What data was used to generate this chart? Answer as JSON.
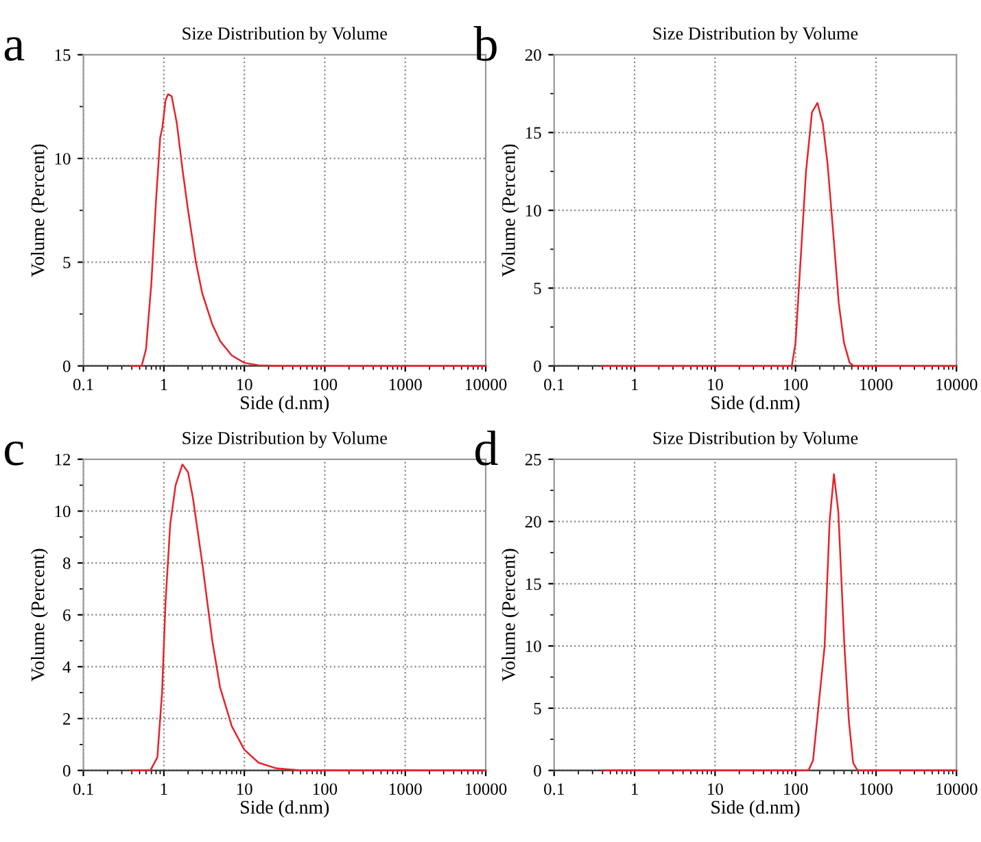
{
  "chart_data": [
    {
      "type": "line",
      "title": "Size Distribution by Volume",
      "xlabel": "Side (d.nm)",
      "ylabel": "Volume (Percent)",
      "annotations": [
        "a"
      ],
      "log": "x",
      "grid": true,
      "xlim": [
        0.1,
        10000
      ],
      "xticks": [
        0.1,
        1,
        10,
        100,
        1000,
        10000
      ],
      "ylim": [
        0,
        15
      ],
      "yticks": [
        0,
        5,
        10,
        15
      ],
      "series": [
        {
          "color": "#e5242b",
          "x": [
            0.4,
            0.53,
            0.6,
            0.7,
            0.8,
            0.9,
            0.96,
            1.05,
            1.13,
            1.25,
            1.45,
            1.7,
            2.0,
            2.5,
            3,
            4,
            5,
            7,
            10,
            15,
            30,
            100,
            1000,
            10000
          ],
          "values": [
            0,
            0,
            0.8,
            4,
            8,
            11,
            11.5,
            12.8,
            13.1,
            13.0,
            11.7,
            9.5,
            7.5,
            5,
            3.5,
            2,
            1.2,
            0.5,
            0.15,
            0.03,
            0,
            0,
            0,
            0
          ]
        }
      ]
    },
    {
      "type": "line",
      "title": "Size Distribution by Volume",
      "xlabel": "Side (d.nm)",
      "ylabel": "Volume (Percent)",
      "annotations": [
        "b"
      ],
      "log": "x",
      "grid": true,
      "xlim": [
        0.1,
        10000
      ],
      "xticks": [
        0.1,
        1,
        10,
        100,
        1000,
        10000
      ],
      "ylim": [
        0,
        20
      ],
      "yticks": [
        0,
        5,
        10,
        15,
        20
      ],
      "series": [
        {
          "color": "#e5242b",
          "x": [
            0.4,
            1,
            10,
            90,
            100,
            135,
            160,
            187,
            218,
            250,
            300,
            345,
            400,
            470,
            530,
            1000,
            10000
          ],
          "values": [
            0,
            0,
            0,
            0,
            1.5,
            12.5,
            16.3,
            16.9,
            15.6,
            13,
            8,
            4,
            1.5,
            0.2,
            0,
            0,
            0
          ]
        }
      ]
    },
    {
      "type": "line",
      "title": "Size Distribution by Volume",
      "xlabel": "Side (d.nm)",
      "ylabel": "Volume (Percent)",
      "annotations": [
        "c"
      ],
      "log": "x",
      "grid": true,
      "xlim": [
        0.1,
        10000
      ],
      "xticks": [
        0.1,
        1,
        10,
        100,
        1000,
        10000
      ],
      "ylim": [
        0,
        12
      ],
      "yticks": [
        0,
        2,
        4,
        6,
        8,
        10,
        12
      ],
      "series": [
        {
          "color": "#e5242b",
          "x": [
            0.4,
            0.68,
            0.83,
            0.95,
            1.05,
            1.2,
            1.4,
            1.7,
            2.0,
            2.3,
            3,
            4,
            5,
            7,
            10,
            15,
            25,
            50,
            100,
            1000,
            10000
          ],
          "values": [
            0,
            0,
            0.5,
            3,
            6.5,
            9.5,
            11,
            11.8,
            11.5,
            10.5,
            8,
            5,
            3.2,
            1.7,
            0.8,
            0.3,
            0.08,
            0,
            0,
            0,
            0
          ]
        }
      ]
    },
    {
      "type": "line",
      "title": "Size Distribution by Volume",
      "xlabel": "Side (d.nm)",
      "ylabel": "Volume (Percent)",
      "annotations": [
        "d"
      ],
      "log": "x",
      "grid": true,
      "xlim": [
        0.1,
        10000
      ],
      "xticks": [
        0.1,
        1,
        10,
        100,
        1000,
        10000
      ],
      "ylim": [
        0,
        25
      ],
      "yticks": [
        0,
        5,
        10,
        15,
        20,
        25
      ],
      "series": [
        {
          "color": "#e5242b",
          "x": [
            0.4,
            1,
            10,
            100,
            145,
            165,
            230,
            265,
            300,
            340,
            405,
            460,
            520,
            590,
            1000,
            10000
          ],
          "values": [
            0,
            0,
            0,
            0,
            0,
            0.8,
            10,
            20,
            23.8,
            20.8,
            10,
            4,
            0.6,
            0,
            0,
            0
          ]
        }
      ]
    }
  ]
}
